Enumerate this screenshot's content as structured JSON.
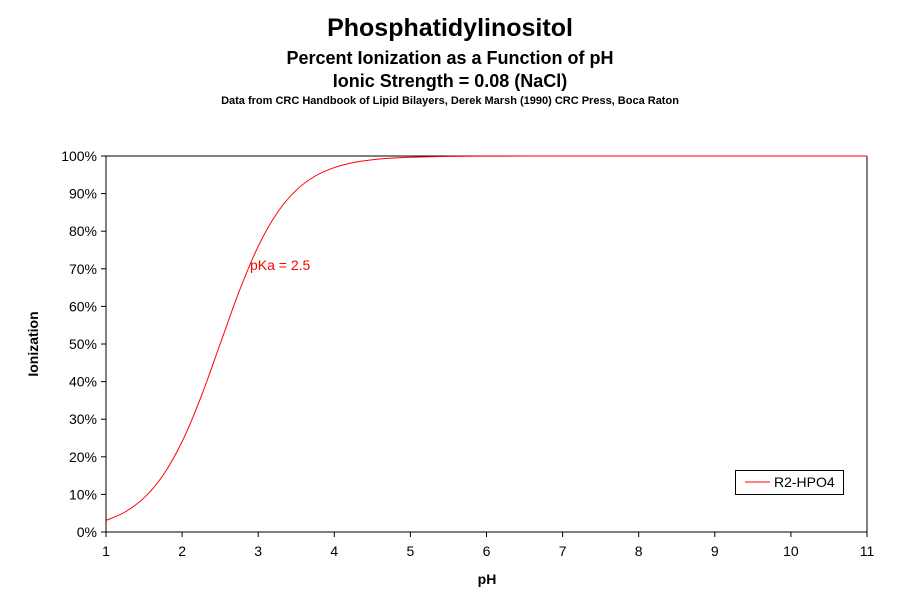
{
  "chart_data": {
    "type": "line",
    "title": "Phosphatidylinositol",
    "subtitle": [
      "Percent Ionization  as a Function of pH",
      "Ionic  Strength = 0.08 (NaCl)"
    ],
    "source": "Data from CRC  Handbook of Lipid Bilayers, Derek Marsh (1990)  CRC Press,  Boca Raton",
    "xlabel": "pH",
    "ylabel": "Ionization",
    "xlim": [
      1,
      11
    ],
    "ylim": [
      0,
      100
    ],
    "x_ticks": [
      "1",
      "2",
      "3",
      "4",
      "5",
      "6",
      "7",
      "8",
      "9",
      "10",
      "11"
    ],
    "y_ticks": [
      "0%",
      "10%",
      "20%",
      "30%",
      "40%",
      "50%",
      "60%",
      "70%",
      "80%",
      "90%",
      "100%"
    ],
    "grid": false,
    "legend_position": "bottom-right",
    "annotation": {
      "text": "pKa = 2.5",
      "color": "#ff0000"
    },
    "series": [
      {
        "name": "R2-HPO4",
        "color": "#ff0000",
        "x": [
          1,
          1.25,
          1.5,
          1.75,
          2,
          2.25,
          2.5,
          2.75,
          3,
          3.25,
          3.5,
          3.75,
          4,
          4.25,
          4.5,
          4.75,
          5,
          5.5,
          6,
          6.5,
          7,
          8,
          9,
          10,
          11
        ],
        "y": [
          3.07,
          5.32,
          9.09,
          15.1,
          24.03,
          36.0,
          50.0,
          64.0,
          75.97,
          84.9,
          90.91,
          94.68,
          96.93,
          98.25,
          99.01,
          99.44,
          99.68,
          99.9,
          99.97,
          99.99,
          100,
          100,
          100,
          100,
          100
        ]
      }
    ]
  }
}
